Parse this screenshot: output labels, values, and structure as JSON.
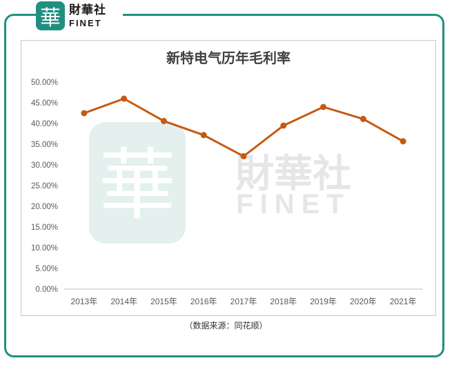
{
  "brand": {
    "badge_char": "華",
    "name_cn": "財華社",
    "name_en": "FINET"
  },
  "watermark": {
    "badge_char": "華",
    "name_cn": "財華社",
    "name_en": "FINET"
  },
  "caption": "（数据来源：同花顺）",
  "colors": {
    "frame": "#1f8f80",
    "line": "#c55a11",
    "axis_text": "#595959",
    "title": "#404040",
    "watermark": "#e3f0ed"
  },
  "chart_data": {
    "type": "line",
    "title": "新特电气历年毛利率",
    "categories": [
      "2013年",
      "2014年",
      "2015年",
      "2016年",
      "2017年",
      "2018年",
      "2019年",
      "2020年",
      "2021年"
    ],
    "series": [
      {
        "values": [
          42.5,
          46.0,
          40.6,
          37.2,
          32.1,
          39.5,
          44.0,
          41.1,
          35.7
        ]
      }
    ],
    "ylim": [
      0,
      50
    ],
    "yticks": [
      "0.00%",
      "5.00%",
      "10.00%",
      "15.00%",
      "20.00%",
      "25.00%",
      "30.00%",
      "35.00%",
      "40.00%",
      "45.00%",
      "50.00%"
    ],
    "grid": false,
    "legend": "none"
  }
}
